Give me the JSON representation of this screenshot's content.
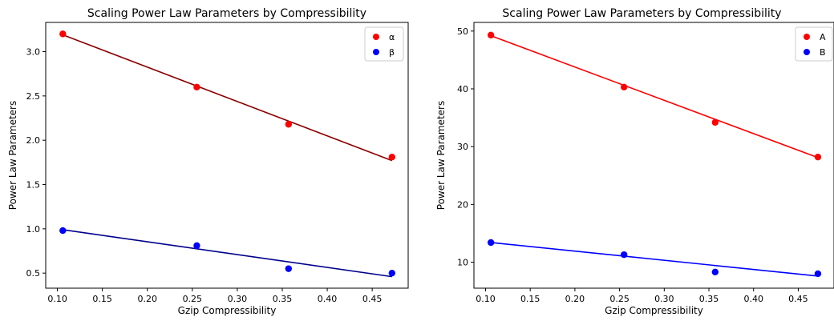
{
  "chart_data": [
    {
      "type": "scatter",
      "title": "Scaling Power Law Parameters by Compressibility",
      "xlabel": "Gzip Compressibility",
      "ylabel": "Power Law Parameters",
      "xlim": [
        0.087,
        0.49
      ],
      "ylim": [
        0.33,
        3.33
      ],
      "xticks": [
        "0.10",
        "0.15",
        "0.20",
        "0.25",
        "0.30",
        "0.35",
        "0.40",
        "0.45"
      ],
      "yticks": [
        "0.5",
        "1.0",
        "1.5",
        "2.0",
        "2.5",
        "3.0"
      ],
      "legend_position": "top-right",
      "series": [
        {
          "name": "α",
          "color": "#ff0000",
          "fit_color": "#8b0000",
          "x": [
            0.106,
            0.255,
            0.357,
            0.472
          ],
          "y": [
            3.2,
            2.6,
            2.18,
            1.81
          ],
          "fit": [
            [
              0.106,
              3.19
            ],
            [
              0.472,
              1.77
            ]
          ]
        },
        {
          "name": "β",
          "color": "#0000ff",
          "fit_color": "#00008b",
          "x": [
            0.106,
            0.255,
            0.357,
            0.472
          ],
          "y": [
            0.98,
            0.81,
            0.55,
            0.5
          ],
          "fit": [
            [
              0.106,
              0.99
            ],
            [
              0.472,
              0.46
            ]
          ]
        }
      ]
    },
    {
      "type": "scatter",
      "title": "Scaling Power Law Parameters by Compressibility",
      "xlabel": "Gzip Compressibility",
      "ylabel": "Power Law Parameters",
      "xlim": [
        0.087,
        0.49
      ],
      "ylim": [
        5.5,
        51.5
      ],
      "xticks": [
        "0.10",
        "0.15",
        "0.20",
        "0.25",
        "0.30",
        "0.35",
        "0.40",
        "0.45"
      ],
      "yticks": [
        "10",
        "20",
        "30",
        "40",
        "50"
      ],
      "legend_position": "top-right",
      "series": [
        {
          "name": "A",
          "color": "#ff0000",
          "fit_color": "#ff0000",
          "x": [
            0.106,
            0.255,
            0.357,
            0.472
          ],
          "y": [
            49.3,
            40.3,
            34.2,
            28.2
          ],
          "fit": [
            [
              0.106,
              49.2
            ],
            [
              0.472,
              28.1
            ]
          ]
        },
        {
          "name": "B",
          "color": "#0000ff",
          "fit_color": "#0000ff",
          "x": [
            0.106,
            0.255,
            0.357,
            0.472
          ],
          "y": [
            13.4,
            11.3,
            8.3,
            8.0
          ],
          "fit": [
            [
              0.106,
              13.4
            ],
            [
              0.472,
              7.6
            ]
          ]
        }
      ]
    }
  ]
}
